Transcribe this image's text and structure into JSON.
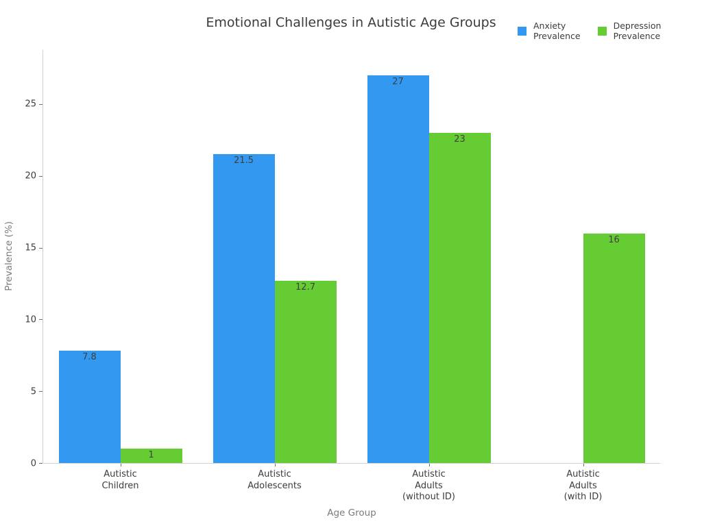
{
  "chart_data": {
    "type": "bar",
    "title": "Emotional Challenges in Autistic Age Groups",
    "xlabel": "Age Group",
    "ylabel": "Prevalence (%)",
    "categories": [
      "Autistic\nChildren",
      "Autistic\nAdolescents",
      "Autistic\nAdults\n(without ID)",
      "Autistic\nAdults\n(with ID)"
    ],
    "series": [
      {
        "name": "Anxiety\nPrevalence",
        "color": "#3398f0",
        "values": [
          7.8,
          21.5,
          27,
          null
        ]
      },
      {
        "name": "Depression\nPrevalence",
        "color": "#66cc33",
        "values": [
          1,
          12.7,
          23,
          16
        ]
      }
    ],
    "yticks": [
      0,
      5,
      10,
      15,
      20,
      25
    ],
    "ylim": [
      0,
      28.76
    ],
    "grid": false,
    "legend_position": "top-right",
    "bar_value_labels": true,
    "colors": {
      "background": "#ffffff",
      "axis_line": "#d0d0d0",
      "tick": "#707070",
      "text": "#3b3b3b",
      "muted_text": "#7a7a7a"
    }
  }
}
